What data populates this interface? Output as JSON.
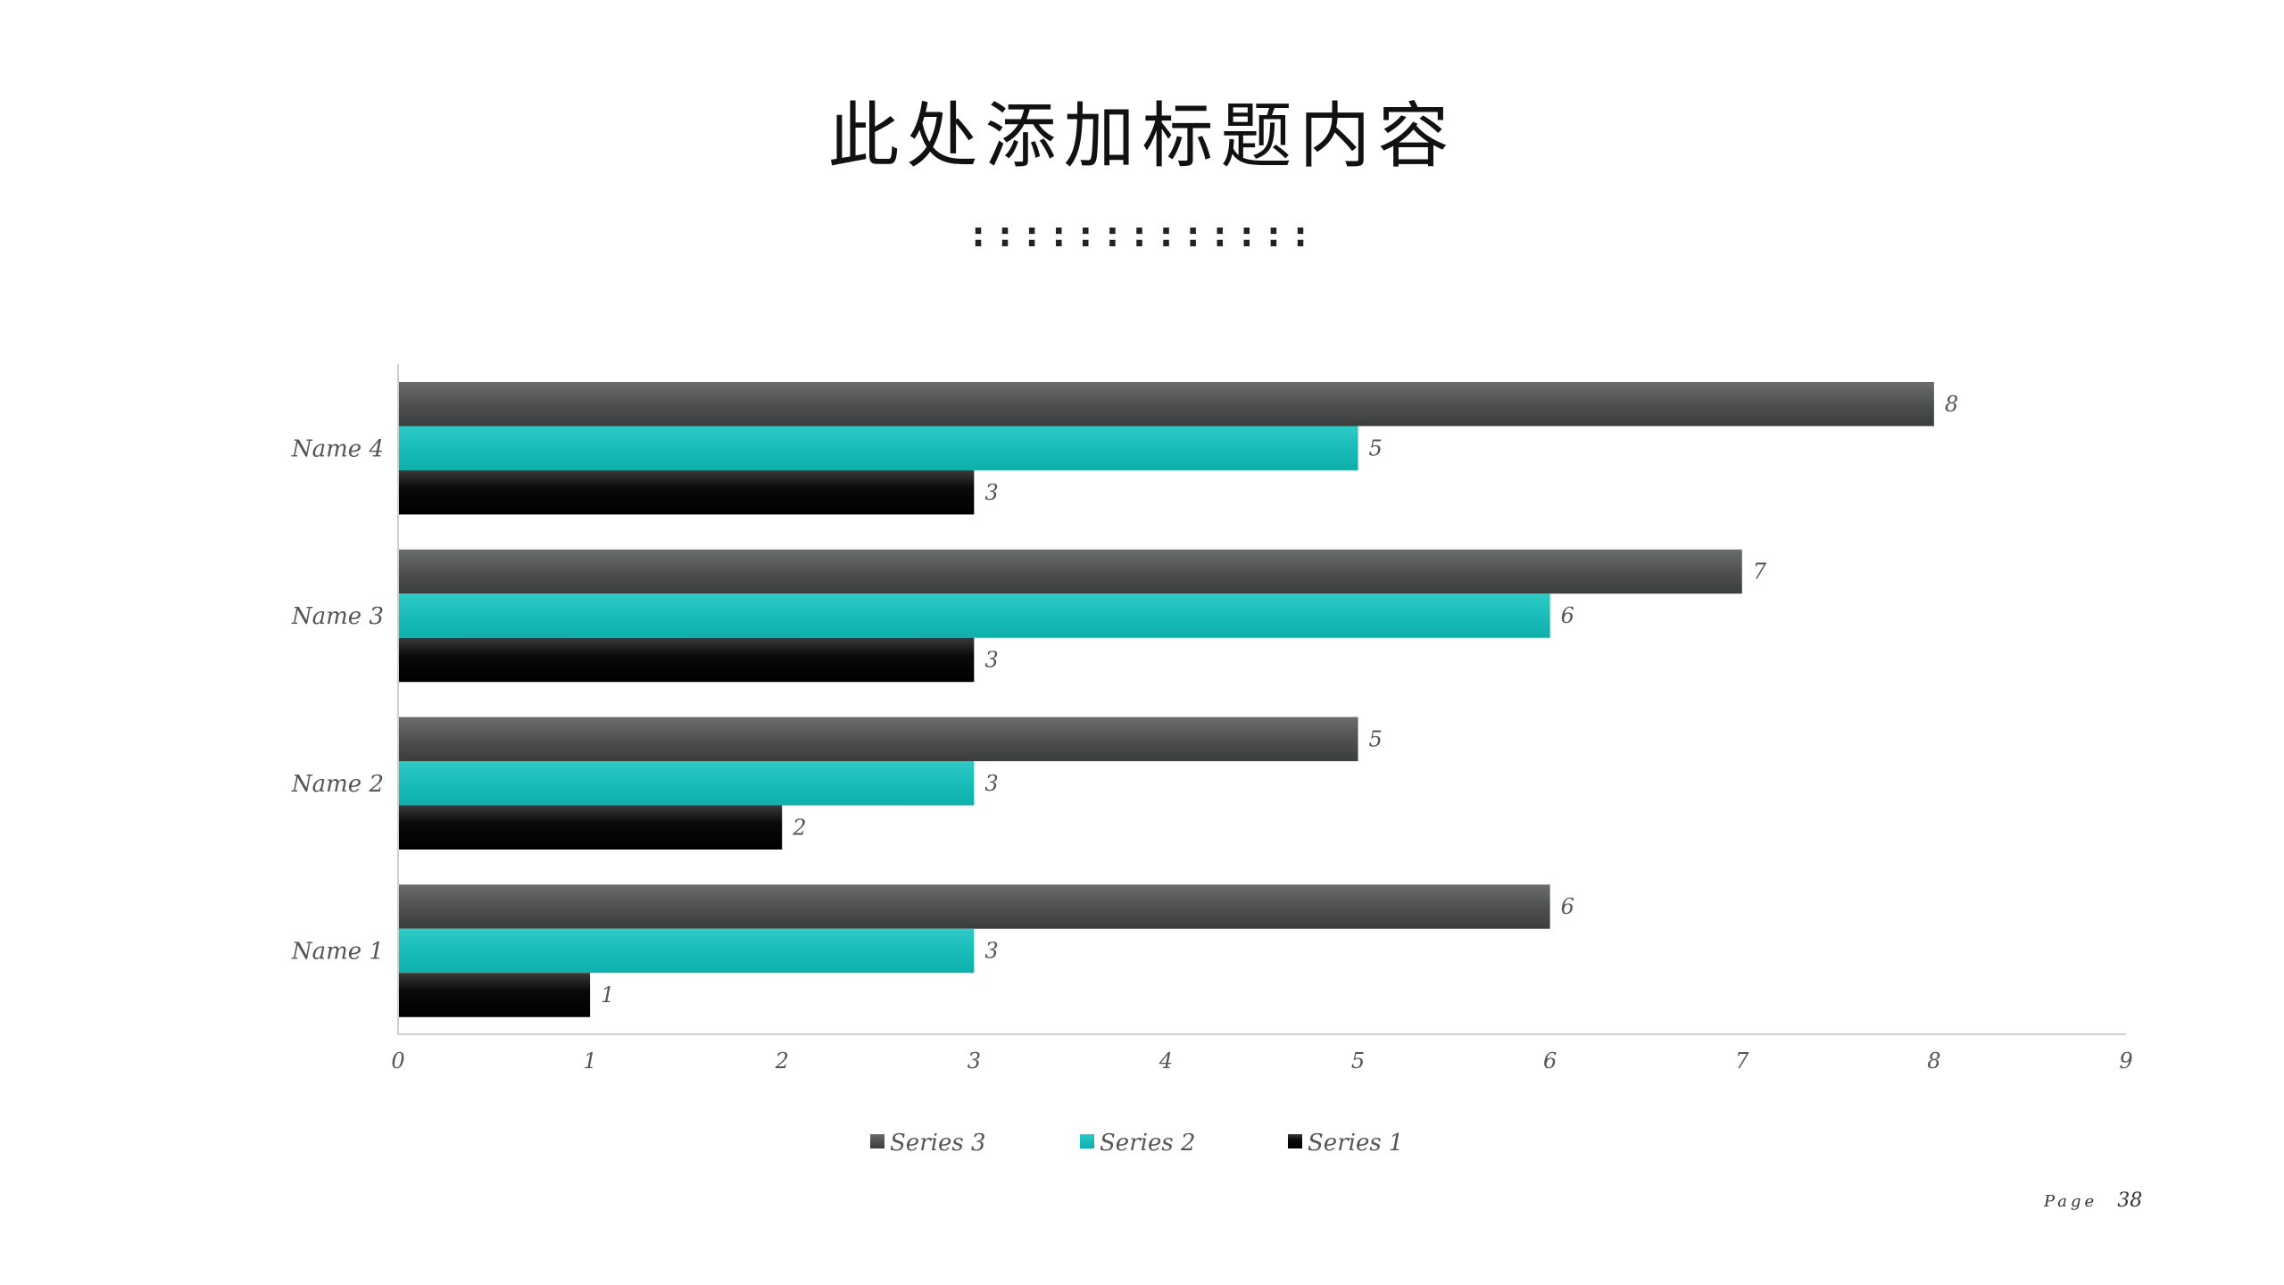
{
  "slide": {
    "title": "此处添加标题内容",
    "dots": ":::::::::::::",
    "page_word": "Page",
    "page_number": "38"
  },
  "colors": {
    "series_3": "#4a4d4c",
    "series_2": "#1cbdb9",
    "series_1": "#050505",
    "axis": "#cfcfcf",
    "label_text": "#555555"
  },
  "chart_data": {
    "type": "bar",
    "orientation": "horizontal",
    "title": "",
    "xlabel": "",
    "ylabel": "",
    "categories": [
      "Name 1",
      "Name 2",
      "Name 3",
      "Name 4"
    ],
    "series": [
      {
        "name": "Series 3",
        "values": [
          6,
          5,
          7,
          8
        ]
      },
      {
        "name": "Series 2",
        "values": [
          3,
          3,
          6,
          5
        ]
      },
      {
        "name": "Series 1",
        "values": [
          1,
          2,
          3,
          3
        ]
      }
    ],
    "xlim": [
      0,
      9
    ],
    "x_ticks": [
      0,
      1,
      2,
      3,
      4,
      5,
      6,
      7,
      8,
      9
    ],
    "data_labels": true,
    "grid": false,
    "legend": "bottom"
  }
}
